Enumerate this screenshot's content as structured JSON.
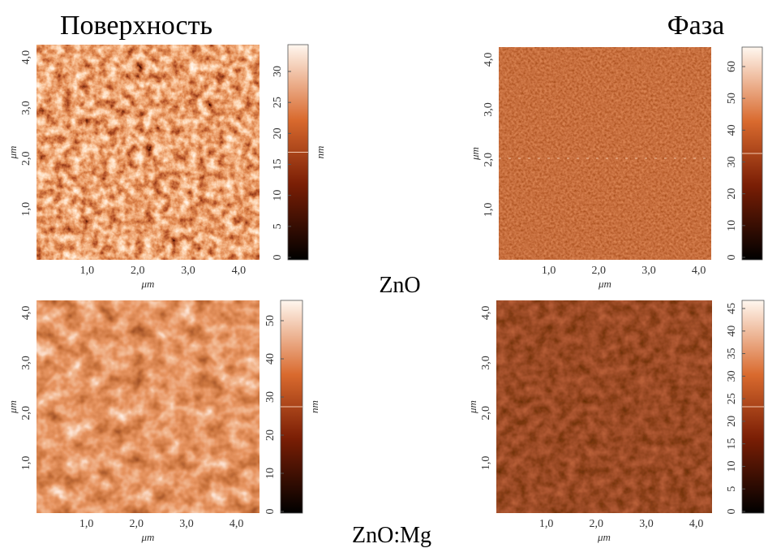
{
  "headers": {
    "surface": "Поверхность",
    "phase": "Фаза"
  },
  "samples": [
    {
      "label": "ZnO"
    },
    {
      "label": "ZnO:Mg"
    }
  ],
  "panels": [
    {
      "x_ticks": [
        "1,0",
        "2,0",
        "3,0",
        "4,0"
      ],
      "y_ticks": [
        "1,0",
        "2,0",
        "3,0",
        "4,0"
      ],
      "x_unit": "μm",
      "y_unit": "μm",
      "colorbar_ticks": [
        "0",
        "5",
        "10",
        "15",
        "20",
        "25",
        "30"
      ],
      "colorbar_unit": "nm"
    },
    {
      "x_ticks": [
        "1,0",
        "2,0",
        "3,0",
        "4,0"
      ],
      "y_ticks": [
        "1,0",
        "2,0",
        "3,0",
        "4,0"
      ],
      "x_unit": "μm",
      "y_unit": "μm",
      "colorbar_ticks": [
        "0",
        "10",
        "20",
        "30",
        "40",
        "50",
        "60"
      ]
    },
    {
      "x_ticks": [
        "1,0",
        "2,0",
        "3,0",
        "4,0"
      ],
      "y_ticks": [
        "1,0",
        "2,0",
        "3,0",
        "4,0"
      ],
      "x_unit": "μm",
      "y_unit": "μm",
      "colorbar_ticks": [
        "0",
        "10",
        "20",
        "30",
        "40",
        "50"
      ],
      "colorbar_unit": "nm"
    },
    {
      "x_ticks": [
        "1,0",
        "2,0",
        "3,0",
        "4,0"
      ],
      "y_ticks": [
        "1,0",
        "2,0",
        "3,0",
        "4,0"
      ],
      "x_unit": "μm",
      "y_unit": "μm",
      "colorbar_ticks": [
        "0",
        "5",
        "10",
        "15",
        "20",
        "25",
        "30",
        "35",
        "40",
        "45"
      ]
    }
  ]
}
